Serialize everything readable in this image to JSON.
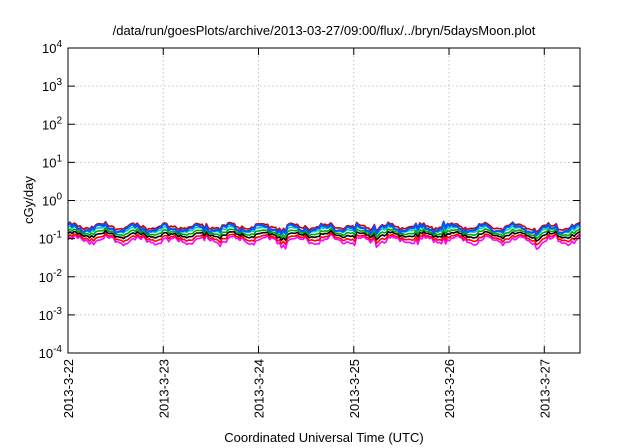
{
  "chart_data": {
    "type": "line",
    "title": "/data/run/goesPlots/archive/2013-03-27/09:00/flux/../bryn/5daysMoon.plot",
    "xlabel": "Coordinated Universal Time (UTC)",
    "ylabel": "cGy/day",
    "y_scale": "log",
    "ylim": [
      0.0001,
      10000
    ],
    "y_ticks": [
      {
        "value": 0.0001,
        "base": "10",
        "exp": "-4"
      },
      {
        "value": 0.001,
        "base": "10",
        "exp": "-3"
      },
      {
        "value": 0.01,
        "base": "10",
        "exp": "-2"
      },
      {
        "value": 0.1,
        "base": "10",
        "exp": "-1"
      },
      {
        "value": 1,
        "base": "10",
        "exp": "0"
      },
      {
        "value": 10,
        "base": "10",
        "exp": "1"
      },
      {
        "value": 100,
        "base": "10",
        "exp": "2"
      },
      {
        "value": 1000,
        "base": "10",
        "exp": "3"
      },
      {
        "value": 10000,
        "base": "10",
        "exp": "4"
      }
    ],
    "xlim": [
      "2013-03-22T00:00",
      "2013-03-27T09:00"
    ],
    "x_ticks": [
      "2013-3-22",
      "2013-3-23",
      "2013-3-24",
      "2013-3-25",
      "2013-3-26",
      "2013-3-27"
    ],
    "grid": true,
    "series": [
      {
        "color": "#ff00ff",
        "base": 0.09,
        "swing": 0.35
      },
      {
        "color": "#ff0000",
        "base": 0.105,
        "swing": 0.28
      },
      {
        "color": "#000000",
        "base": 0.125,
        "swing": 0.25
      },
      {
        "color": "#00aa00",
        "base": 0.145,
        "swing": 0.25
      },
      {
        "color": "#00cccc",
        "base": 0.17,
        "swing": 0.26
      },
      {
        "color": "#cc0000",
        "base": 0.21,
        "swing": 0.28
      },
      {
        "color": "#0055ff",
        "base": 0.185,
        "swing": 0.34
      }
    ]
  }
}
